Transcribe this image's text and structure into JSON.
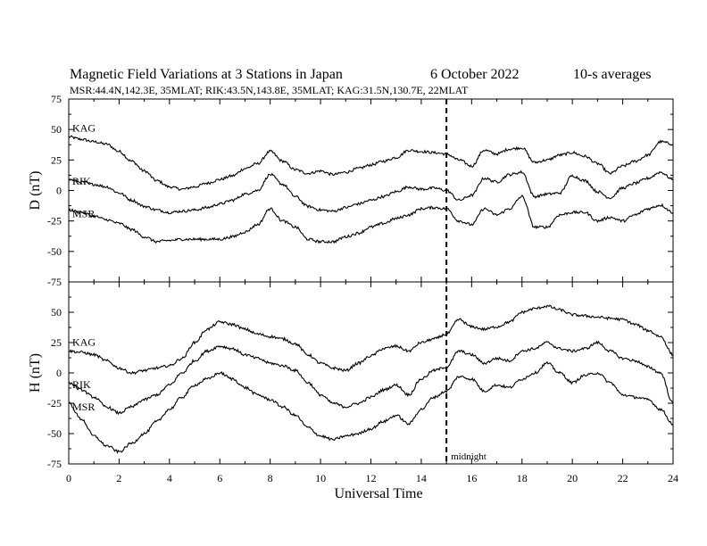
{
  "header": {
    "title": "Magnetic Field Variations at 3 Stations in Japan",
    "date": "6   October 2022",
    "averaging": "10-s averages",
    "stations_line": "MSR:44.4N,142.3E, 35MLAT;  RIK:43.5N,143.8E, 35MLAT;  KAG:31.5N,130.7E, 22MLAT"
  },
  "chart_data": {
    "type": "line",
    "xlabel": "Universal Time",
    "xlim": [
      0,
      24
    ],
    "xticks": [
      0,
      2,
      4,
      6,
      8,
      10,
      12,
      14,
      16,
      18,
      20,
      22,
      24
    ],
    "annotation": {
      "text": "midnight",
      "x": 15
    },
    "panels": [
      {
        "id": "D",
        "ylabel": "D (nT)",
        "ylim": [
          -75,
          75
        ],
        "yticks": [
          75,
          50,
          25,
          0,
          -25,
          -50,
          -75
        ],
        "series": [
          {
            "name": "KAG",
            "x": [
              0,
              0.5,
              1,
              1.5,
              2,
              2.5,
              3,
              3.5,
              4,
              4.5,
              5,
              5.5,
              6,
              6.5,
              7,
              7.5,
              8,
              8.5,
              9,
              9.5,
              10,
              10.5,
              11,
              11.5,
              12,
              12.5,
              13,
              13.5,
              14,
              14.5,
              15,
              15.5,
              16,
              16.5,
              17,
              17.5,
              18,
              18.5,
              19,
              19.5,
              20,
              20.5,
              21,
              21.5,
              22,
              22.5,
              23,
              23.5,
              24
            ],
            "values": [
              44,
              42,
              40,
              38,
              32,
              24,
              16,
              8,
              3,
              1,
              3,
              6,
              9,
              12,
              18,
              22,
              32,
              24,
              17,
              14,
              16,
              13,
              15,
              18,
              21,
              24,
              27,
              33,
              32,
              31,
              30,
              25,
              20,
              33,
              30,
              34,
              35,
              23,
              25,
              29,
              31,
              28,
              22,
              14,
              20,
              24,
              29,
              40,
              38
            ]
          },
          {
            "name": "RIK",
            "x": [
              0,
              0.5,
              1,
              1.5,
              2,
              2.5,
              3,
              3.5,
              4,
              4.5,
              5,
              5.5,
              6,
              6.5,
              7,
              7.5,
              8,
              8.5,
              9,
              9.5,
              10,
              10.5,
              11,
              11.5,
              12,
              12.5,
              13,
              13.5,
              14,
              14.5,
              15,
              15.5,
              16,
              16.5,
              17,
              17.5,
              18,
              18.5,
              19,
              19.5,
              20,
              20.5,
              21,
              21.5,
              22,
              22.5,
              23,
              23.5,
              24
            ],
            "values": [
              9,
              7,
              5,
              3,
              -2,
              -8,
              -13,
              -16,
              -18,
              -17,
              -16,
              -14,
              -11,
              -8,
              -3,
              0,
              13,
              5,
              -5,
              -13,
              -16,
              -17,
              -14,
              -11,
              -8,
              -5,
              -1,
              3,
              1,
              2,
              0,
              -8,
              -4,
              10,
              7,
              13,
              15,
              -5,
              -3,
              -2,
              12,
              8,
              -1,
              -6,
              2,
              6,
              10,
              15,
              9
            ]
          },
          {
            "name": "MSR",
            "x": [
              0,
              0.5,
              1,
              1.5,
              2,
              2.5,
              3,
              3.5,
              4,
              4.5,
              5,
              5.5,
              6,
              6.5,
              7,
              7.5,
              8,
              8.5,
              9,
              9.5,
              10,
              10.5,
              11,
              11.5,
              12,
              12.5,
              13,
              13.5,
              14,
              14.5,
              15,
              15.5,
              16,
              16.5,
              17,
              17.5,
              18,
              18.5,
              19,
              19.5,
              20,
              20.5,
              21,
              21.5,
              22,
              22.5,
              23,
              23.5,
              24
            ],
            "values": [
              -16,
              -18,
              -21,
              -24,
              -27,
              -32,
              -38,
              -42,
              -41,
              -40,
              -40,
              -40,
              -40,
              -38,
              -34,
              -28,
              -15,
              -25,
              -30,
              -40,
              -42,
              -42,
              -38,
              -35,
              -30,
              -27,
              -23,
              -20,
              -15,
              -14,
              -15,
              -25,
              -28,
              -15,
              -20,
              -15,
              -5,
              -30,
              -30,
              -20,
              -18,
              -18,
              -25,
              -22,
              -25,
              -20,
              -15,
              -12,
              -18
            ]
          }
        ]
      },
      {
        "id": "H",
        "ylabel": "H (nT)",
        "ylim": [
          -75,
          75
        ],
        "yticks": [
          75,
          50,
          25,
          0,
          -25,
          -50,
          -75
        ],
        "series": [
          {
            "name": "KAG",
            "x": [
              0,
              0.5,
              1,
              1.5,
              2,
              2.5,
              3,
              3.5,
              4,
              4.5,
              5,
              5.5,
              6,
              6.5,
              7,
              7.5,
              8,
              8.5,
              9,
              9.5,
              10,
              10.5,
              11,
              11.5,
              12,
              12.5,
              13,
              13.5,
              14,
              14.5,
              15,
              15.5,
              16,
              16.5,
              17,
              17.5,
              18,
              18.5,
              19,
              19.5,
              20,
              20.5,
              21,
              21.5,
              22,
              22.5,
              23,
              23.5,
              24
            ],
            "values": [
              18,
              17,
              15,
              10,
              4,
              0,
              2,
              4,
              6,
              12,
              25,
              36,
              42,
              40,
              36,
              32,
              30,
              28,
              24,
              15,
              8,
              4,
              2,
              8,
              14,
              20,
              22,
              18,
              25,
              28,
              32,
              44,
              38,
              36,
              38,
              42,
              50,
              53,
              55,
              52,
              48,
              47,
              46,
              45,
              44,
              40,
              35,
              30,
              15
            ]
          },
          {
            "name": "RIK",
            "x": [
              0,
              0.5,
              1,
              1.5,
              2,
              2.5,
              3,
              3.5,
              4,
              4.5,
              5,
              5.5,
              6,
              6.5,
              7,
              7.5,
              8,
              8.5,
              9,
              9.5,
              10,
              10.5,
              11,
              11.5,
              12,
              12.5,
              13,
              13.5,
              14,
              14.5,
              15,
              15.5,
              16,
              16.5,
              17,
              17.5,
              18,
              18.5,
              19,
              19.5,
              20,
              20.5,
              21,
              21.5,
              22,
              22.5,
              23,
              23.5,
              24
            ],
            "values": [
              -8,
              -14,
              -20,
              -28,
              -33,
              -28,
              -22,
              -18,
              -10,
              0,
              10,
              18,
              22,
              20,
              15,
              12,
              8,
              6,
              2,
              -8,
              -18,
              -25,
              -28,
              -25,
              -20,
              -14,
              -10,
              -18,
              -5,
              2,
              5,
              18,
              15,
              8,
              12,
              10,
              18,
              20,
              25,
              20,
              18,
              20,
              25,
              18,
              12,
              10,
              5,
              0,
              -25
            ]
          },
          {
            "name": "MSR",
            "x": [
              0,
              0.5,
              1,
              1.5,
              2,
              2.5,
              3,
              3.5,
              4,
              4.5,
              5,
              5.5,
              6,
              6.5,
              7,
              7.5,
              8,
              8.5,
              9,
              9.5,
              10,
              10.5,
              11,
              11.5,
              12,
              12.5,
              13,
              13.5,
              14,
              14.5,
              15,
              15.5,
              16,
              16.5,
              17,
              17.5,
              18,
              18.5,
              19,
              19.5,
              20,
              20.5,
              21,
              21.5,
              22,
              22.5,
              23,
              23.5,
              24
            ],
            "values": [
              -25,
              -38,
              -52,
              -60,
              -65,
              -58,
              -50,
              -40,
              -30,
              -20,
              -10,
              -5,
              0,
              -5,
              -12,
              -18,
              -22,
              -28,
              -35,
              -45,
              -52,
              -55,
              -52,
              -50,
              -46,
              -40,
              -35,
              -42,
              -30,
              -20,
              -15,
              -3,
              -5,
              -15,
              -10,
              -12,
              -5,
              0,
              8,
              0,
              -8,
              -2,
              0,
              -8,
              -18,
              -20,
              -22,
              -30,
              -42
            ]
          }
        ]
      }
    ]
  }
}
